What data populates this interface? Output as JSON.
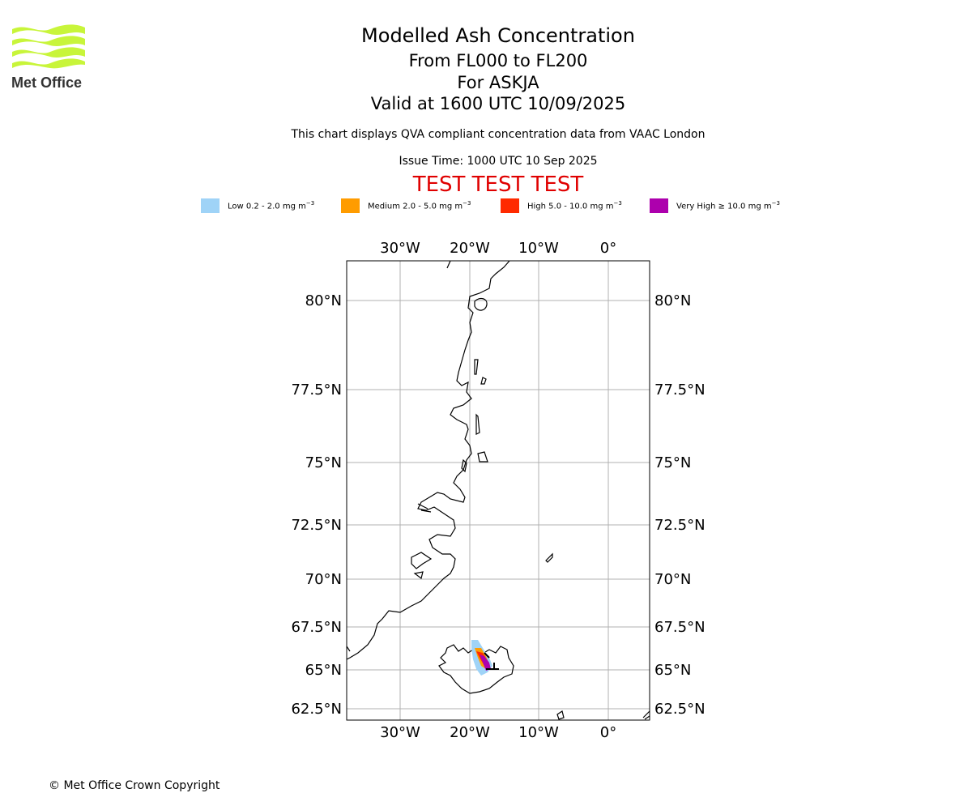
{
  "logo": {
    "name": "Met Office"
  },
  "header": {
    "title": "Modelled Ash Concentration",
    "line2": "From FL000 to FL200",
    "line3": "For ASKJA",
    "line4": "Valid at 1600 UTC 10/09/2025",
    "subtitle": "This chart displays QVA compliant concentration data from VAAC London",
    "issue_time": "Issue Time: 1000 UTC 10 Sep 2025",
    "test_banner": "TEST TEST TEST"
  },
  "legend": [
    {
      "label": "Low 0.2 - 2.0 mg m",
      "exp": "−3",
      "color": "#9fd3f7"
    },
    {
      "label": "Medium 2.0 - 5.0 mg m",
      "exp": "−3",
      "color": "#ff9c00"
    },
    {
      "label": "High 5.0 - 10.0 mg m",
      "exp": "−3",
      "color": "#ff2a00"
    },
    {
      "label": "Very High ≥ 10.0 mg m",
      "exp": "−3",
      "color": "#ad00ad"
    }
  ],
  "map": {
    "lon_ticks": [
      "30°W",
      "20°W",
      "10°W",
      "0°"
    ],
    "lat_ticks": [
      "80°N",
      "77.5°N",
      "75°N",
      "72.5°N",
      "70°N",
      "67.5°N",
      "65°N",
      "62.5°N"
    ],
    "grid": true
  },
  "footer": {
    "copyright": "© Met Office Crown Copyright"
  }
}
